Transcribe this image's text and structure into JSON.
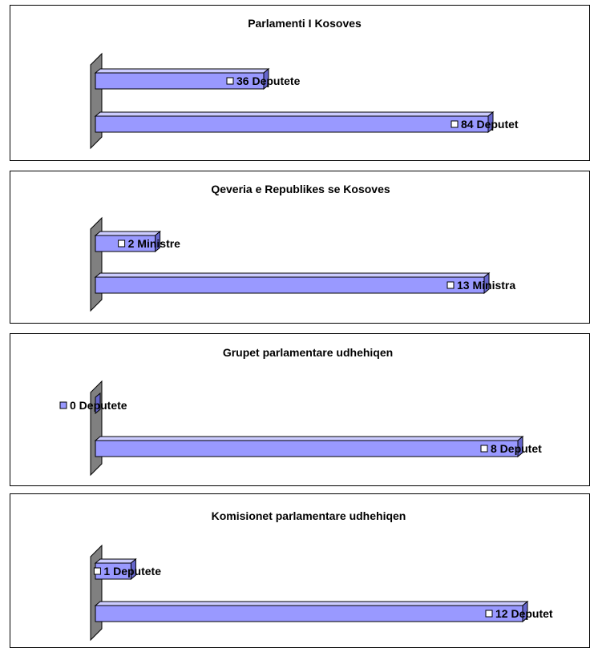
{
  "colors": {
    "bar_front": "#9999ff",
    "bar_top": "#ccccff",
    "bar_side": "#6666cc",
    "wall": "#808080",
    "wall_shade": "#606060",
    "bar_outline": "#000000"
  },
  "chart_data": [
    {
      "type": "bar",
      "orientation": "horizontal",
      "title": "Parlamenti I Kosoves",
      "categories": [
        "Deputete",
        "Deputet"
      ],
      "values": [
        36,
        84
      ],
      "data_labels": [
        "36 Deputete",
        "84 Deputet"
      ],
      "xlim": [
        0,
        84
      ]
    },
    {
      "type": "bar",
      "orientation": "horizontal",
      "title": "Qeveria e Republikes se Kosoves",
      "categories": [
        "Ministre",
        "Ministra"
      ],
      "values": [
        2,
        13
      ],
      "data_labels": [
        "2 Ministre",
        "13 Ministra"
      ],
      "xlim": [
        0,
        13
      ]
    },
    {
      "type": "bar",
      "orientation": "horizontal",
      "title": "Grupet parlamentare udhehiqen",
      "categories": [
        "Deputete",
        "Deputet"
      ],
      "values": [
        0,
        8
      ],
      "data_labels": [
        "0 Deputete",
        "8 Deputet"
      ],
      "xlim": [
        0,
        8
      ]
    },
    {
      "type": "bar",
      "orientation": "horizontal",
      "title": "Komisionet parlamentare udhehiqen",
      "categories": [
        "Deputete",
        "Deputet"
      ],
      "values": [
        1,
        12
      ],
      "data_labels": [
        "1 Deputete",
        "12 Deputet"
      ],
      "xlim": [
        0,
        12
      ]
    }
  ]
}
